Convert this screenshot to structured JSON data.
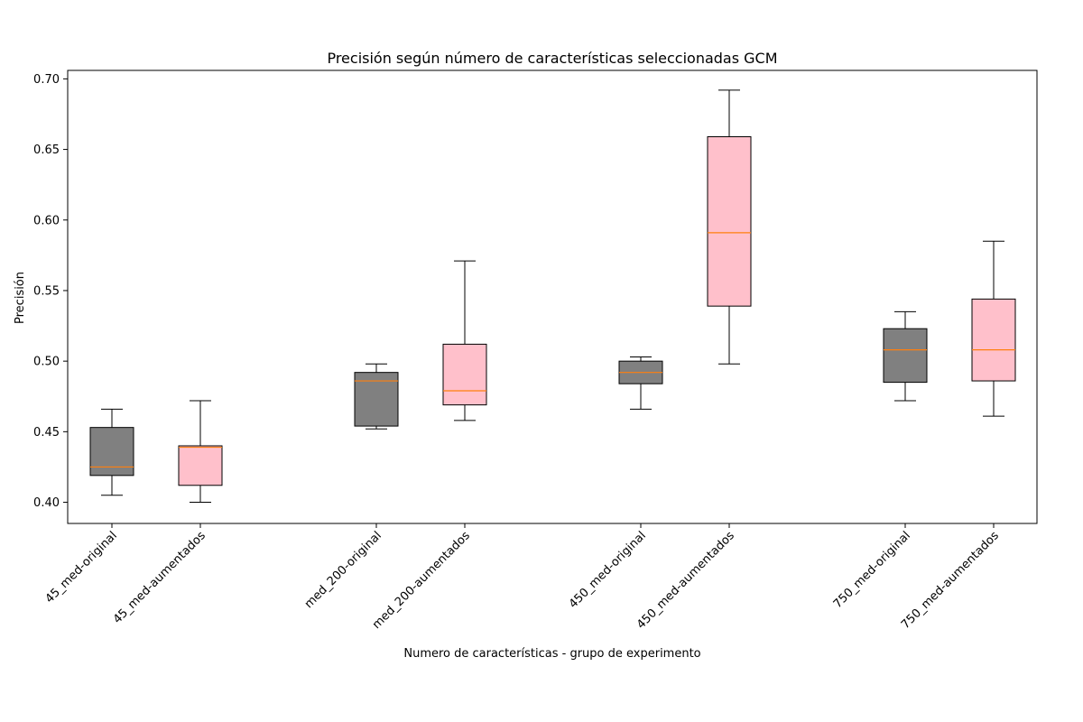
{
  "chart_data": {
    "type": "boxplot",
    "title": "Precisión según número de características seleccionadas GCM",
    "xlabel": "Numero de características - grupo de experimento",
    "ylabel": "Precisión",
    "ylim": [
      0.385,
      0.706
    ],
    "yticks": [
      "0.40",
      "0.45",
      "0.50",
      "0.55",
      "0.60",
      "0.65",
      "0.70"
    ],
    "grid": false,
    "colors": {
      "original": "#808080",
      "aumentados": "#ffc0cb",
      "median": "#ff7f0e",
      "edge": "#000000"
    },
    "boxes": [
      {
        "label": "45_med-original",
        "group": "original",
        "whisker_low": 0.405,
        "q1": 0.419,
        "median": 0.425,
        "q3": 0.453,
        "whisker_high": 0.466
      },
      {
        "label": "45_med-aumentados",
        "group": "aumentados",
        "whisker_low": 0.4,
        "q1": 0.412,
        "median": 0.439,
        "q3": 0.44,
        "whisker_high": 0.472
      },
      {
        "label": "med_200-original",
        "group": "original",
        "whisker_low": 0.452,
        "q1": 0.454,
        "median": 0.486,
        "q3": 0.492,
        "whisker_high": 0.498
      },
      {
        "label": "med_200-aumentados",
        "group": "aumentados",
        "whisker_low": 0.458,
        "q1": 0.469,
        "median": 0.479,
        "q3": 0.512,
        "whisker_high": 0.571
      },
      {
        "label": "450_med-original",
        "group": "original",
        "whisker_low": 0.466,
        "q1": 0.484,
        "median": 0.492,
        "q3": 0.5,
        "whisker_high": 0.503
      },
      {
        "label": "450_med-aumentados",
        "group": "aumentados",
        "whisker_low": 0.498,
        "q1": 0.539,
        "median": 0.591,
        "q3": 0.659,
        "whisker_high": 0.692
      },
      {
        "label": "750_med-original",
        "group": "original",
        "whisker_low": 0.472,
        "q1": 0.485,
        "median": 0.508,
        "q3": 0.523,
        "whisker_high": 0.535
      },
      {
        "label": "750_med-aumentados",
        "group": "aumentados",
        "whisker_low": 0.461,
        "q1": 0.486,
        "median": 0.508,
        "q3": 0.544,
        "whisker_high": 0.585
      }
    ]
  }
}
